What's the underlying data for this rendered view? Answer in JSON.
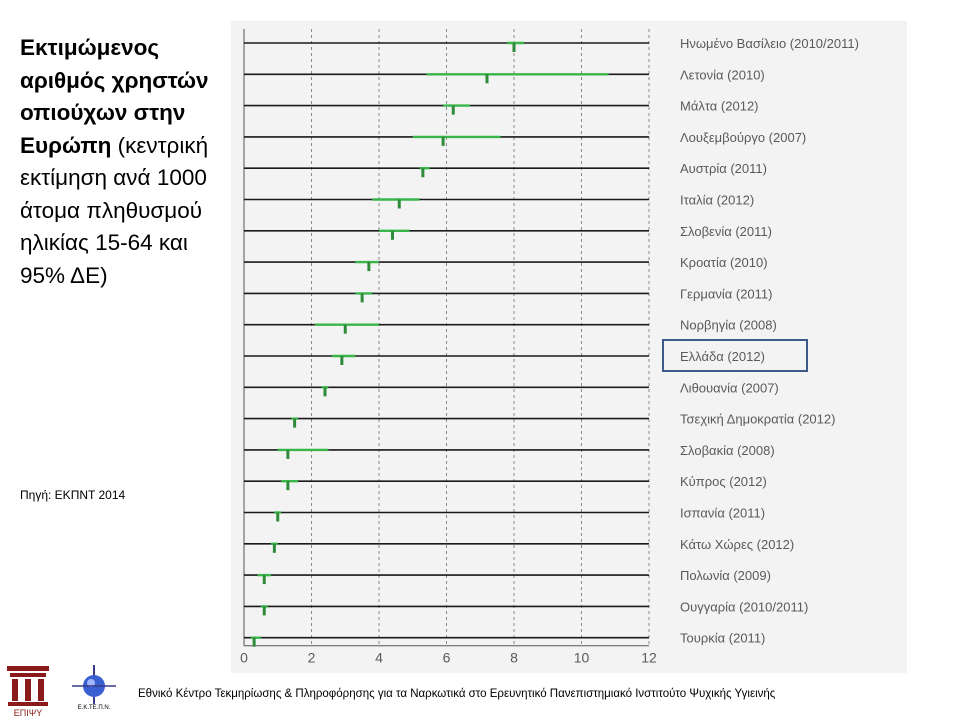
{
  "title": {
    "bold": "Εκτιμώμενος αριθμός χρηστών οπιούχων στην Ευρώπη",
    "normal": "(κεντρική εκτίμηση ανά 1000 άτομα πληθυσμού ηλικίας 15-64 και 95% ΔΕ)"
  },
  "source": "Πηγή: ΕΚΠΝΤ 2014",
  "footer": "Εθνικό Κέντρο Τεκμηρίωσης & Πληροφόρησης για τα Ναρκωτικά στο Ερευνητικό Πανεπιστημιακό Ινστιτούτο Ψυχικής Υγιεινής",
  "logos": {
    "left_text": "ΕΠΙΨΥ",
    "right_text": "Ε.Κ.ΤΕ.Π.Ν."
  },
  "highlight_color": "#3b5a8a",
  "chart_data": {
    "type": "errorbar",
    "xlim": [
      0,
      12
    ],
    "xticks": [
      0,
      2,
      4,
      6,
      8,
      10,
      12
    ],
    "grid": true,
    "highlight": "Ελλάδα (2012)",
    "colors": {
      "interval": "#39b54a",
      "estimate": "#2e8b3a",
      "line": "#1a1a1a"
    },
    "rows": [
      {
        "label": "Ηνωμένο Βασίλειο (2010/2011)",
        "est": 8.0,
        "lo": 7.8,
        "hi": 8.3
      },
      {
        "label": "Λετονία (2010)",
        "est": 7.2,
        "lo": 5.4,
        "hi": 10.8
      },
      {
        "label": "Μάλτα (2012)",
        "est": 6.2,
        "lo": 5.9,
        "hi": 6.7
      },
      {
        "label": "Λουξεμβούργο (2007)",
        "est": 5.9,
        "lo": 5.0,
        "hi": 7.6
      },
      {
        "label": "Αυστρία (2011)",
        "est": 5.3,
        "lo": 5.2,
        "hi": 5.5
      },
      {
        "label": "Ιταλία (2012)",
        "est": 4.6,
        "lo": 3.8,
        "hi": 5.2
      },
      {
        "label": "Σλοβενία (2011)",
        "est": 4.4,
        "lo": 4.0,
        "hi": 4.9
      },
      {
        "label": "Κροατία (2010)",
        "est": 3.7,
        "lo": 3.3,
        "hi": 4.0
      },
      {
        "label": "Γερμανία (2011)",
        "est": 3.5,
        "lo": 3.3,
        "hi": 3.8
      },
      {
        "label": "Νορβηγία (2008)",
        "est": 3.0,
        "lo": 2.1,
        "hi": 4.0
      },
      {
        "label": "Ελλάδα (2012)",
        "est": 2.9,
        "lo": 2.6,
        "hi": 3.3
      },
      {
        "label": "Λιθουανία (2007)",
        "est": 2.4,
        "lo": 2.3,
        "hi": 2.5
      },
      {
        "label": "Τσεχική Δημοκρατία (2012)",
        "est": 1.5,
        "lo": 1.4,
        "hi": 1.6
      },
      {
        "label": "Σλοβακία (2008)",
        "est": 1.3,
        "lo": 1.0,
        "hi": 2.5
      },
      {
        "label": "Κύπρος (2012)",
        "est": 1.3,
        "lo": 1.1,
        "hi": 1.6
      },
      {
        "label": "Ισπανία (2011)",
        "est": 1.0,
        "lo": 0.9,
        "hi": 1.1
      },
      {
        "label": "Κάτω Χώρες (2012)",
        "est": 0.9,
        "lo": 0.8,
        "hi": 1.0
      },
      {
        "label": "Πολωνία (2009)",
        "est": 0.6,
        "lo": 0.4,
        "hi": 0.8
      },
      {
        "label": "Ουγγαρία (2010/2011)",
        "est": 0.6,
        "lo": 0.5,
        "hi": 0.7
      },
      {
        "label": "Τουρκία (2011)",
        "est": 0.3,
        "lo": 0.2,
        "hi": 0.5
      }
    ]
  }
}
